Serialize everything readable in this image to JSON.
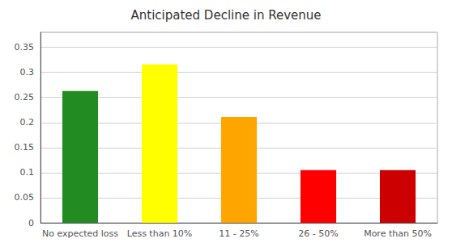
{
  "chart_data": {
    "type": "bar",
    "title": "Anticipated Decline in Revenue",
    "categories": [
      "No expected loss",
      "Less than 10%",
      "11 - 25%",
      "26 - 50%",
      "More than 50%"
    ],
    "values": [
      0.263,
      0.316,
      0.211,
      0.105,
      0.105
    ],
    "colors": [
      "#228B22",
      "#FFFF00",
      "#FFA500",
      "#FF0000",
      "#CC0000"
    ],
    "ylim": [
      0,
      0.38
    ],
    "yticks": [
      0,
      0.05,
      0.1,
      0.15,
      0.2,
      0.25,
      0.3,
      0.35
    ],
    "grid": true
  }
}
